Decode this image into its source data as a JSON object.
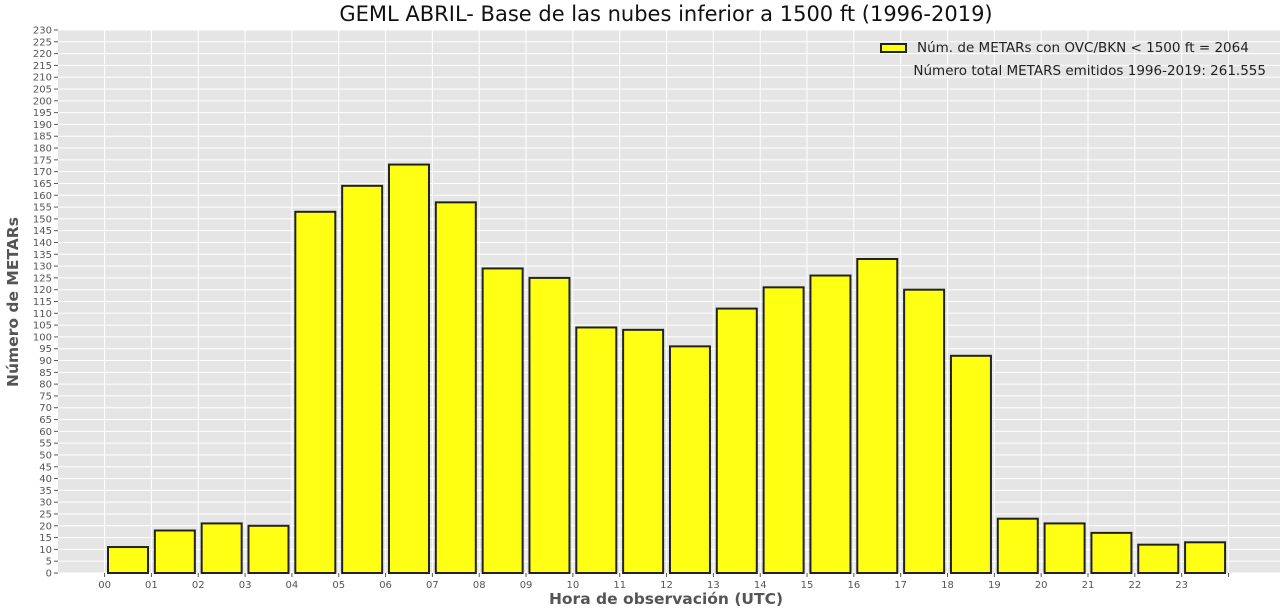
{
  "chart_data": {
    "type": "bar",
    "title": "GEML ABRIL- Base de las nubes inferior a 1500 ft (1996-2019)",
    "xlabel": "Hora de observación (UTC)",
    "ylabel": "Número de METARs",
    "categories": [
      "00",
      "01",
      "02",
      "03",
      "04",
      "05",
      "06",
      "07",
      "08",
      "09",
      "10",
      "11",
      "12",
      "13",
      "14",
      "15",
      "16",
      "17",
      "18",
      "19",
      "20",
      "21",
      "22",
      "23"
    ],
    "series": [
      {
        "name": "Núm. de METARs con OVC/BKN < 1500 ft = 2064",
        "values": [
          11,
          18,
          21,
          20,
          153,
          164,
          173,
          157,
          129,
          125,
          104,
          103,
          96,
          112,
          121,
          126,
          133,
          120,
          92,
          23,
          21,
          17,
          12,
          13
        ]
      }
    ],
    "ylim": [
      0,
      230
    ],
    "ytick_step": 5,
    "grid": true,
    "legend_position": "top-right",
    "annotation": "Número total METARS emitidos 1996-2019: 261.555",
    "colors": {
      "bar_fill": "#ffff14",
      "bar_edge": "#222222",
      "plot_bg": "#e5e5e5",
      "grid": "#ffffff",
      "tick_text": "#555555"
    }
  }
}
